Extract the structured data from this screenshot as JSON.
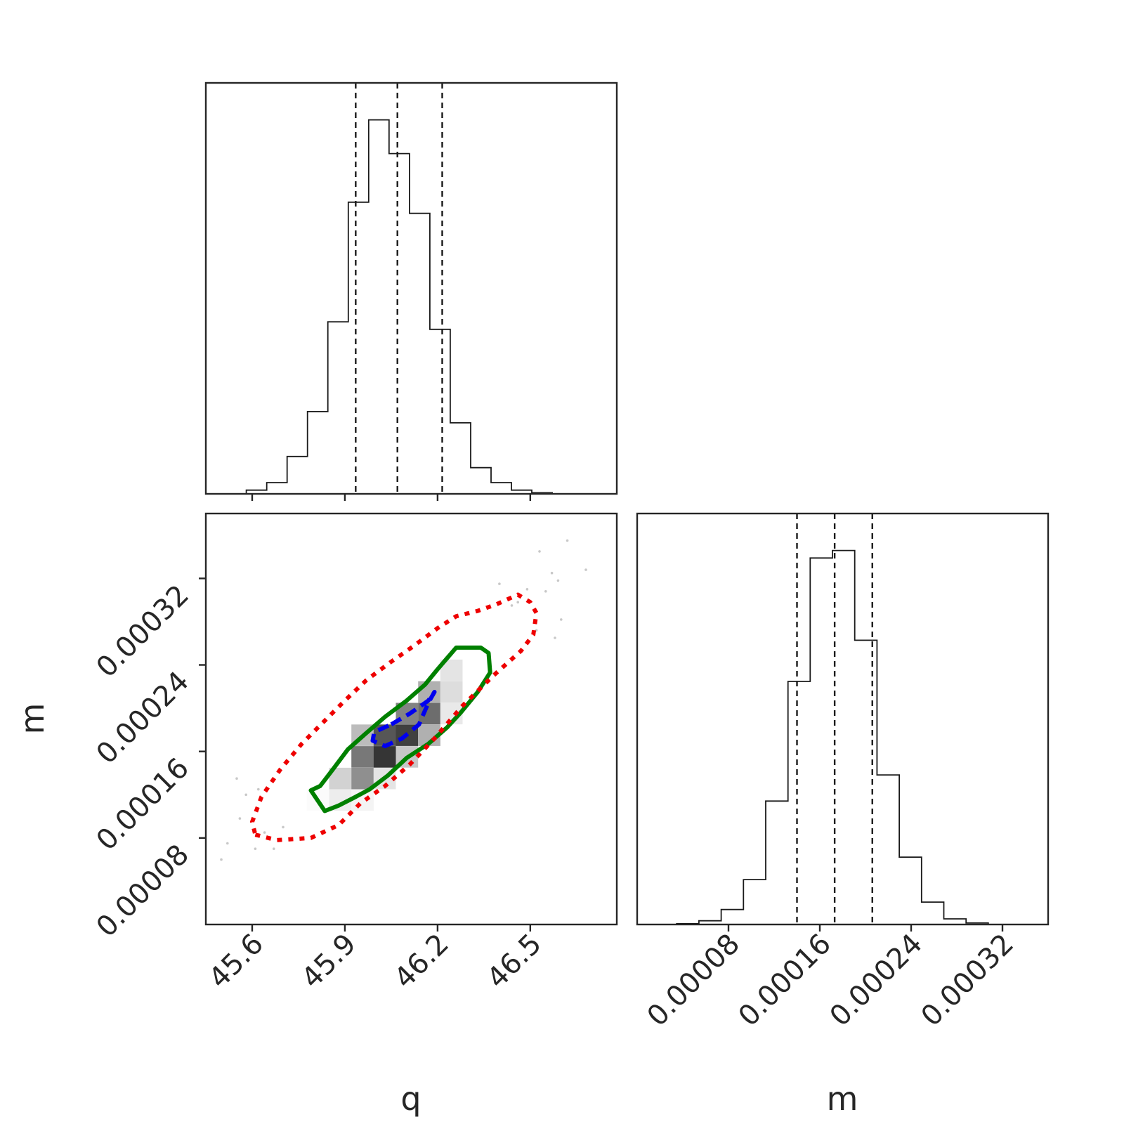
{
  "chart_data": [
    {
      "type": "bar",
      "panel": "q-marginal-histogram",
      "xlim": [
        45.45,
        46.78
      ],
      "bin_width": 0.066,
      "bins": [
        {
          "x0": 45.515,
          "x1": 45.581,
          "value": 0.0
        },
        {
          "x0": 45.581,
          "x1": 45.647,
          "value": 0.01
        },
        {
          "x0": 45.647,
          "x1": 45.713,
          "value": 0.03
        },
        {
          "x0": 45.713,
          "x1": 45.779,
          "value": 0.1
        },
        {
          "x0": 45.779,
          "x1": 45.845,
          "value": 0.22
        },
        {
          "x0": 45.845,
          "x1": 45.911,
          "value": 0.46
        },
        {
          "x0": 45.911,
          "x1": 45.977,
          "value": 0.78
        },
        {
          "x0": 45.977,
          "x1": 46.043,
          "value": 1.0
        },
        {
          "x0": 46.043,
          "x1": 46.109,
          "value": 0.91
        },
        {
          "x0": 46.109,
          "x1": 46.175,
          "value": 0.75
        },
        {
          "x0": 46.175,
          "x1": 46.241,
          "value": 0.44
        },
        {
          "x0": 46.241,
          "x1": 46.307,
          "value": 0.19
        },
        {
          "x0": 46.307,
          "x1": 46.373,
          "value": 0.07
        },
        {
          "x0": 46.373,
          "x1": 46.439,
          "value": 0.03
        },
        {
          "x0": 46.439,
          "x1": 46.505,
          "value": 0.01
        },
        {
          "x0": 46.505,
          "x1": 46.571,
          "value": 0.003
        }
      ],
      "quantiles": [
        45.935,
        46.07,
        46.215
      ],
      "x_ticks": [
        "45.6",
        "45.9",
        "46.2",
        "46.5"
      ]
    },
    {
      "type": "bar",
      "panel": "m-marginal-histogram",
      "xlim": [
        0.0,
        0.00036
      ],
      "bin_width": 1.95e-05,
      "bins": [
        {
          "x0": 3.46e-05,
          "x1": 5.41e-05,
          "value": 0.002
        },
        {
          "x0": 5.41e-05,
          "x1": 7.36e-05,
          "value": 0.01
        },
        {
          "x0": 7.36e-05,
          "x1": 9.31e-05,
          "value": 0.04
        },
        {
          "x0": 9.31e-05,
          "x1": 0.0001126,
          "value": 0.12
        },
        {
          "x0": 0.0001126,
          "x1": 0.0001321,
          "value": 0.33
        },
        {
          "x0": 0.0001321,
          "x1": 0.0001516,
          "value": 0.65
        },
        {
          "x0": 0.0001516,
          "x1": 0.0001711,
          "value": 0.98
        },
        {
          "x0": 0.0001711,
          "x1": 0.0001906,
          "value": 1.0
        },
        {
          "x0": 0.0001906,
          "x1": 0.0002101,
          "value": 0.76
        },
        {
          "x0": 0.0002101,
          "x1": 0.0002296,
          "value": 0.4
        },
        {
          "x0": 0.0002296,
          "x1": 0.0002491,
          "value": 0.18
        },
        {
          "x0": 0.0002491,
          "x1": 0.0002686,
          "value": 0.06
        },
        {
          "x0": 0.0002686,
          "x1": 0.0002881,
          "value": 0.015
        },
        {
          "x0": 0.0002881,
          "x1": 0.0003076,
          "value": 0.004
        }
      ],
      "quantiles": [
        0.00014,
        0.000173,
        0.000206
      ],
      "x_ticks": [
        "0.00008",
        "0.00016",
        "0.00024",
        "0.00032"
      ],
      "xlabel": "m"
    },
    {
      "type": "heatmap",
      "panel": "q-m-joint-density",
      "xlim": [
        45.45,
        46.78
      ],
      "ylim": [
        0.0,
        0.00038
      ],
      "xlabel": "q",
      "ylabel": "m",
      "x_ticks": [
        "45.6",
        "45.9",
        "46.2",
        "46.5"
      ],
      "y_ticks": [
        "0.00008",
        "0.00016",
        "0.00024",
        "0.00032"
      ],
      "cell_size": {
        "q": 0.072,
        "m": 1.99e-05
      },
      "cells": [
        {
          "q": 45.813,
          "m": 0.000115,
          "density": 0.02
        },
        {
          "q": 45.885,
          "m": 0.000115,
          "density": 0.08
        },
        {
          "q": 45.957,
          "m": 0.000115,
          "density": 0.05
        },
        {
          "q": 45.885,
          "m": 0.000135,
          "density": 0.2
        },
        {
          "q": 45.957,
          "m": 0.000135,
          "density": 0.5
        },
        {
          "q": 46.029,
          "m": 0.000135,
          "density": 0.12
        },
        {
          "q": 45.957,
          "m": 0.000155,
          "density": 0.6
        },
        {
          "q": 46.029,
          "m": 0.000155,
          "density": 0.9
        },
        {
          "q": 46.101,
          "m": 0.000155,
          "density": 0.25
        },
        {
          "q": 45.957,
          "m": 0.000175,
          "density": 0.3
        },
        {
          "q": 46.029,
          "m": 0.000175,
          "density": 0.75
        },
        {
          "q": 46.101,
          "m": 0.000175,
          "density": 0.85
        },
        {
          "q": 46.173,
          "m": 0.000175,
          "density": 0.35
        },
        {
          "q": 46.101,
          "m": 0.000195,
          "density": 0.55
        },
        {
          "q": 46.173,
          "m": 0.000195,
          "density": 0.65
        },
        {
          "q": 46.245,
          "m": 0.000195,
          "density": 0.1
        },
        {
          "q": 46.173,
          "m": 0.000215,
          "density": 0.35
        },
        {
          "q": 46.245,
          "m": 0.000215,
          "density": 0.15
        },
        {
          "q": 46.245,
          "m": 0.000235,
          "density": 0.12
        }
      ],
      "scatter_points": [
        [
          45.5,
          6e-05
        ],
        [
          45.52,
          7.5e-05
        ],
        [
          45.56,
          9.8e-05
        ],
        [
          45.58,
          0.00012
        ],
        [
          45.61,
          7e-05
        ],
        [
          45.64,
          8.5e-05
        ],
        [
          45.67,
          7e-05
        ],
        [
          45.7,
          9e-05
        ],
        [
          45.55,
          0.000135
        ],
        [
          45.62,
          0.000125
        ],
        [
          46.46,
          0.000298
        ],
        [
          46.49,
          0.00031
        ],
        [
          46.53,
          0.000345
        ],
        [
          46.55,
          0.000308
        ],
        [
          46.57,
          0.000325
        ],
        [
          46.59,
          0.000318
        ],
        [
          46.62,
          0.000355
        ],
        [
          46.68,
          0.000328
        ],
        [
          46.4,
          0.000315
        ],
        [
          46.44,
          0.000295
        ],
        [
          46.6,
          0.000282
        ],
        [
          46.58,
          0.000265
        ],
        [
          46.52,
          0.000272
        ]
      ],
      "contours": [
        {
          "level": "inner",
          "color": "#0000ee",
          "style": "dashed",
          "points": [
            [
              46.05,
              0.000185
            ],
            [
              46.11,
              0.000195
            ],
            [
              46.17,
              0.000207
            ],
            [
              46.19,
              0.000215
            ],
            [
              46.17,
              0.000205
            ],
            [
              46.14,
              0.000185
            ],
            [
              46.085,
              0.000172
            ],
            [
              46.03,
              0.000165
            ],
            [
              45.99,
              0.00017
            ],
            [
              45.995,
              0.000178
            ]
          ]
        },
        {
          "level": "middle",
          "color": "#008000",
          "style": "solid",
          "points": [
            [
              45.82,
              0.000128
            ],
            [
              45.86,
              0.000143
            ],
            [
              45.91,
              0.000162
            ],
            [
              45.965,
              0.000176
            ],
            [
              46.03,
              0.000192
            ],
            [
              46.1,
              0.000207
            ],
            [
              46.16,
              0.000222
            ],
            [
              46.2,
              0.000236
            ],
            [
              46.26,
              0.000256
            ],
            [
              46.34,
              0.000256
            ],
            [
              46.365,
              0.000251
            ],
            [
              46.37,
              0.000233
            ],
            [
              46.33,
              0.000215
            ],
            [
              46.275,
              0.000196
            ],
            [
              46.23,
              0.000182
            ],
            [
              46.17,
              0.000167
            ],
            [
              46.1,
              0.000154
            ],
            [
              46.04,
              0.000138
            ],
            [
              45.98,
              0.000125
            ],
            [
              45.935,
              0.000118
            ],
            [
              45.88,
              0.00011
            ],
            [
              45.835,
              0.000105
            ],
            [
              45.79,
              0.000124
            ]
          ]
        },
        {
          "level": "outer",
          "color": "#ee0000",
          "style": "dotted",
          "points": [
            [
              45.61,
              8.3e-05
            ],
            [
              45.68,
              7.8e-05
            ],
            [
              45.79,
              8e-05
            ],
            [
              45.88,
              9.2e-05
            ],
            [
              45.95,
              0.000112
            ],
            [
              46.03,
              0.000128
            ],
            [
              46.11,
              0.000148
            ],
            [
              46.19,
              0.000172
            ],
            [
              46.28,
              0.000202
            ],
            [
              46.38,
              0.00023
            ],
            [
              46.47,
              0.000253
            ],
            [
              46.51,
              0.000268
            ],
            [
              46.52,
              0.000288
            ],
            [
              46.5,
              0.000298
            ],
            [
              46.46,
              0.000305
            ],
            [
              46.39,
              0.000296
            ],
            [
              46.33,
              0.00029
            ],
            [
              46.26,
              0.000285
            ],
            [
              46.2,
              0.000274
            ],
            [
              46.12,
              0.000257
            ],
            [
              46.05,
              0.000243
            ],
            [
              45.97,
              0.000226
            ],
            [
              45.9,
              0.000207
            ],
            [
              45.83,
              0.000187
            ],
            [
              45.76,
              0.000167
            ],
            [
              45.69,
              0.000143
            ],
            [
              45.63,
              0.000118
            ],
            [
              45.6,
              9.5e-05
            ]
          ]
        }
      ]
    }
  ]
}
